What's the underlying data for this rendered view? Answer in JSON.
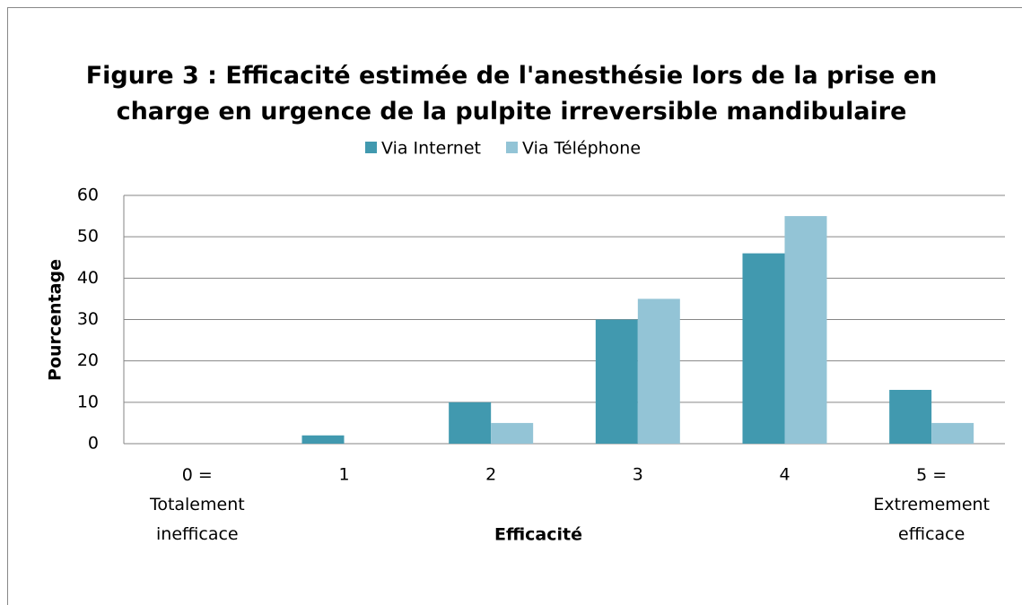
{
  "chart_data": {
    "type": "bar",
    "title": "Figure 3 : Efficacité estimée de l'anesthésie lors de la prise en\ncharge en urgence de la pulpite irreversible mandibulaire",
    "x_label": "Efficacité",
    "y_label": "Pourcentage",
    "categories": [
      "0 =\nTotalement\ninefficace",
      "1",
      "2",
      "3",
      "4",
      "5 =\nExtremement\nefficace"
    ],
    "series": [
      {
        "name": "Via Internet",
        "color": "#4199af",
        "values": [
          0,
          2,
          10,
          30,
          46,
          13
        ]
      },
      {
        "name": "Via Téléphone",
        "color": "#93c4d6",
        "values": [
          0,
          0,
          5,
          35,
          55,
          5
        ]
      }
    ],
    "ylim": [
      0,
      60
    ],
    "yticks": [
      0,
      10,
      20,
      30,
      40,
      50,
      60
    ],
    "grid": true,
    "legend": "top"
  }
}
